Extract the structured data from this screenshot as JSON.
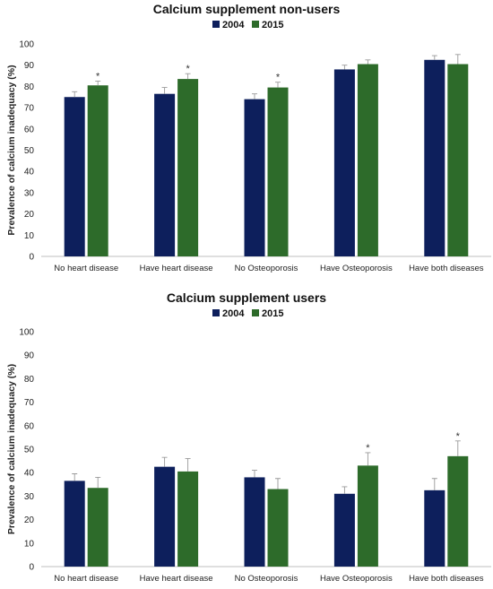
{
  "colors": {
    "s2004": "#0d1f5c",
    "s2015": "#2d6b2a"
  },
  "chart_data": [
    {
      "type": "bar",
      "title": "Calcium supplement non-users",
      "ylabel": "Prevalence of calcium inadequacy (%)",
      "xlabel": "",
      "ylim": [
        0,
        100
      ],
      "yticks": [
        0,
        10,
        20,
        30,
        40,
        50,
        60,
        70,
        80,
        90,
        100
      ],
      "legend": "top-center",
      "grid": false,
      "categories": [
        "No heart disease",
        "Have heart disease",
        "No Osteoporosis",
        "Have Osteoporosis",
        "Have both diseases"
      ],
      "series": [
        {
          "name": "2004",
          "values": [
            75,
            76.5,
            74,
            88,
            92.5
          ],
          "error": [
            2.5,
            3,
            2.5,
            2,
            2
          ]
        },
        {
          "name": "2015",
          "values": [
            80.5,
            83.5,
            79.5,
            90.5,
            90.5
          ],
          "error": [
            2,
            2.5,
            2.5,
            2,
            4.5
          ]
        }
      ],
      "significance": [
        {
          "category": "No heart disease",
          "series": "2015",
          "marker": "*"
        },
        {
          "category": "Have heart disease",
          "series": "2015",
          "marker": "*"
        },
        {
          "category": "No Osteoporosis",
          "series": "2015",
          "marker": "*"
        }
      ]
    },
    {
      "type": "bar",
      "title": "Calcium supplement users",
      "ylabel": "Prevalence of calcium inadequacy (%)",
      "xlabel": "",
      "ylim": [
        0,
        100
      ],
      "yticks": [
        0,
        10,
        20,
        30,
        40,
        50,
        60,
        70,
        80,
        90,
        100
      ],
      "legend": "top-center",
      "grid": false,
      "categories": [
        "No heart disease",
        "Have heart disease",
        "No Osteoporosis",
        "Have Osteoporosis",
        "Have both diseases"
      ],
      "series": [
        {
          "name": "2004",
          "values": [
            36.5,
            42.5,
            38,
            31,
            32.5
          ],
          "error": [
            3,
            4,
            3,
            3,
            5
          ]
        },
        {
          "name": "2015",
          "values": [
            33.5,
            40.5,
            33,
            43,
            47
          ],
          "error": [
            4.5,
            5.5,
            4.5,
            5.5,
            6.5
          ]
        }
      ],
      "significance": [
        {
          "category": "Have Osteoporosis",
          "series": "2015",
          "marker": "*"
        },
        {
          "category": "Have both diseases",
          "series": "2015",
          "marker": "*"
        }
      ]
    }
  ]
}
